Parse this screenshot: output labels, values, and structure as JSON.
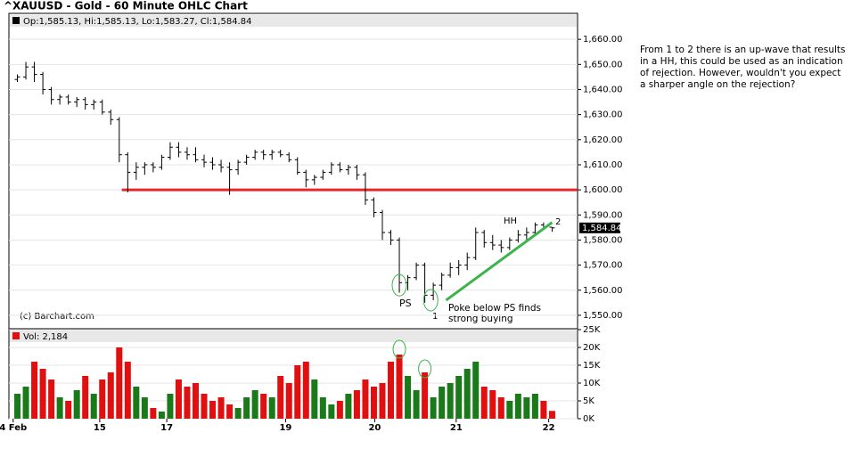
{
  "chart_data": {
    "type": "ohlc",
    "title": "^XAUUSD - Gold - 60 Minute OHLC Chart",
    "legend_text": "Op:1,585.13, Hi:1,585.13, Lo:1,583.27, Cl:1,584.84",
    "credit": "(c) Barchart.com",
    "bar_color": "#000000",
    "xlim": [
      -1,
      66
    ],
    "xticks": [
      {
        "value": -0.5,
        "label": "4 Feb"
      },
      {
        "value": 9.7,
        "label": "15"
      },
      {
        "value": 17.6,
        "label": "17"
      },
      {
        "value": 31.6,
        "label": "19"
      },
      {
        "value": 42.1,
        "label": "20"
      },
      {
        "value": 51.7,
        "label": "21"
      },
      {
        "value": 62.6,
        "label": "22"
      }
    ],
    "ylim": [
      1545,
      1670
    ],
    "yticks": [
      {
        "value": 1550,
        "label": "1,550.00"
      },
      {
        "value": 1560,
        "label": "1,560.00"
      },
      {
        "value": 1570,
        "label": "1,570.00"
      },
      {
        "value": 1580,
        "label": "1,580.00"
      },
      {
        "value": 1590,
        "label": "1,590.00"
      },
      {
        "value": 1600,
        "label": "1,600.00"
      },
      {
        "value": 1610,
        "label": "1,610.00"
      },
      {
        "value": 1620,
        "label": "1,620.00"
      },
      {
        "value": 1630,
        "label": "1,630.00"
      },
      {
        "value": 1640,
        "label": "1,640.00"
      },
      {
        "value": 1650,
        "label": "1,650.00"
      },
      {
        "value": 1660,
        "label": "1,660.00"
      }
    ],
    "grid": true,
    "last_price": {
      "value": 1584.84,
      "label": "1,584.84"
    },
    "ohlc": [
      [
        1644,
        1646,
        1643,
        1645
      ],
      [
        1645,
        1651,
        1644,
        1649
      ],
      [
        1649,
        1651,
        1643,
        1646
      ],
      [
        1646,
        1647,
        1638,
        1640
      ],
      [
        1640,
        1641,
        1634,
        1636
      ],
      [
        1636,
        1638,
        1634,
        1637
      ],
      [
        1637,
        1638,
        1634,
        1635
      ],
      [
        1635,
        1637,
        1633,
        1636
      ],
      [
        1636,
        1637,
        1632,
        1634
      ],
      [
        1634,
        1636,
        1632,
        1635
      ],
      [
        1635,
        1636,
        1630,
        1631
      ],
      [
        1631,
        1632,
        1626,
        1628
      ],
      [
        1628,
        1629,
        1611,
        1614
      ],
      [
        1614,
        1615,
        1599,
        1607
      ],
      [
        1607,
        1611,
        1604,
        1609
      ],
      [
        1609,
        1611,
        1606,
        1610
      ],
      [
        1610,
        1611,
        1607,
        1609
      ],
      [
        1609,
        1614,
        1608,
        1613
      ],
      [
        1613,
        1619,
        1612,
        1617
      ],
      [
        1617,
        1619,
        1613,
        1615
      ],
      [
        1615,
        1617,
        1612,
        1614
      ],
      [
        1614,
        1617,
        1611,
        1612
      ],
      [
        1612,
        1614,
        1609,
        1611
      ],
      [
        1611,
        1613,
        1608,
        1610
      ],
      [
        1610,
        1612,
        1607,
        1609
      ],
      [
        1609,
        1611,
        1598,
        1608
      ],
      [
        1608,
        1612,
        1606,
        1611
      ],
      [
        1611,
        1614,
        1610,
        1613
      ],
      [
        1613,
        1616,
        1612,
        1615
      ],
      [
        1615,
        1616,
        1612,
        1614
      ],
      [
        1614,
        1616,
        1612,
        1615
      ],
      [
        1615,
        1616,
        1613,
        1614
      ],
      [
        1614,
        1615,
        1611,
        1612
      ],
      [
        1612,
        1613,
        1606,
        1607
      ],
      [
        1607,
        1608,
        1601,
        1604
      ],
      [
        1604,
        1606,
        1602,
        1605
      ],
      [
        1605,
        1608,
        1604,
        1607
      ],
      [
        1607,
        1611,
        1606,
        1610
      ],
      [
        1610,
        1611,
        1607,
        1608
      ],
      [
        1608,
        1610,
        1606,
        1609
      ],
      [
        1609,
        1610,
        1604,
        1606
      ],
      [
        1606,
        1607,
        1594,
        1596
      ],
      [
        1596,
        1597,
        1589,
        1591
      ],
      [
        1591,
        1592,
        1580,
        1583
      ],
      [
        1583,
        1584,
        1578,
        1580
      ],
      [
        1580,
        1581,
        1559,
        1563
      ],
      [
        1563,
        1566,
        1560,
        1565
      ],
      [
        1565,
        1571,
        1564,
        1570
      ],
      [
        1570,
        1571,
        1555,
        1558
      ],
      [
        1558,
        1563,
        1556,
        1562
      ],
      [
        1562,
        1567,
        1560,
        1566
      ],
      [
        1566,
        1571,
        1565,
        1569
      ],
      [
        1569,
        1572,
        1566,
        1570
      ],
      [
        1570,
        1575,
        1568,
        1573
      ],
      [
        1573,
        1585,
        1572,
        1583
      ],
      [
        1583,
        1584,
        1577,
        1579
      ],
      [
        1579,
        1582,
        1576,
        1578
      ],
      [
        1578,
        1580,
        1575,
        1577
      ],
      [
        1577,
        1581,
        1576,
        1580
      ],
      [
        1580,
        1584,
        1579,
        1582
      ],
      [
        1582,
        1585,
        1580,
        1583
      ],
      [
        1583,
        1587,
        1582,
        1586
      ],
      [
        1586,
        1587,
        1584,
        1585.13
      ],
      [
        1585.13,
        1585.13,
        1583.27,
        1584.84
      ]
    ],
    "support": {
      "value": 1600,
      "from_x": 12.3,
      "color": "#e8262a"
    },
    "trendline": {
      "x": [
        50.5,
        63
      ],
      "y": [
        1556,
        1587
      ],
      "color": "#3cb44b"
    },
    "circles": [
      {
        "x": 45,
        "y": 1562
      },
      {
        "x": 48.7,
        "y": 1556
      }
    ],
    "annotations": [
      "PS",
      "1",
      "HH",
      "2",
      "Poke below PS finds strong buying"
    ],
    "volume": {
      "label": "Vol: 2,184",
      "up_color": "#1a7a1a",
      "down_color": "#e01010",
      "ylim": [
        0,
        25000
      ],
      "yticks": [
        {
          "value": 0,
          "label": "0K"
        },
        {
          "value": 5000,
          "label": "5K"
        },
        {
          "value": 10000,
          "label": "10K"
        },
        {
          "value": 15000,
          "label": "15K"
        },
        {
          "value": 20000,
          "label": "20K"
        },
        {
          "value": 25000,
          "label": "25K"
        }
      ],
      "values": [
        7000,
        9000,
        16000,
        14000,
        11000,
        6000,
        5000,
        8000,
        12000,
        7000,
        11000,
        13000,
        20000,
        16000,
        9000,
        6000,
        3000,
        2000,
        7000,
        11000,
        9000,
        10000,
        7000,
        5000,
        6000,
        4000,
        3000,
        6000,
        8000,
        7000,
        6000,
        12000,
        10000,
        15000,
        16000,
        11000,
        6000,
        4000,
        5000,
        7000,
        8000,
        11000,
        9000,
        10000,
        16000,
        18000,
        12000,
        8000,
        13000,
        6000,
        9000,
        10000,
        12000,
        14000,
        16000,
        9000,
        8000,
        6000,
        5000,
        7000,
        6000,
        7000,
        5000,
        2184
      ],
      "circles": [
        {
          "x": 45,
          "y": 19500
        },
        {
          "x": 48,
          "y": 14000
        }
      ]
    }
  },
  "note": "From 1 to 2 there is an up-wave that results in a HH, this could be used as an indication of rejection. However, wouldn't you expect a sharper angle on the rejection?"
}
